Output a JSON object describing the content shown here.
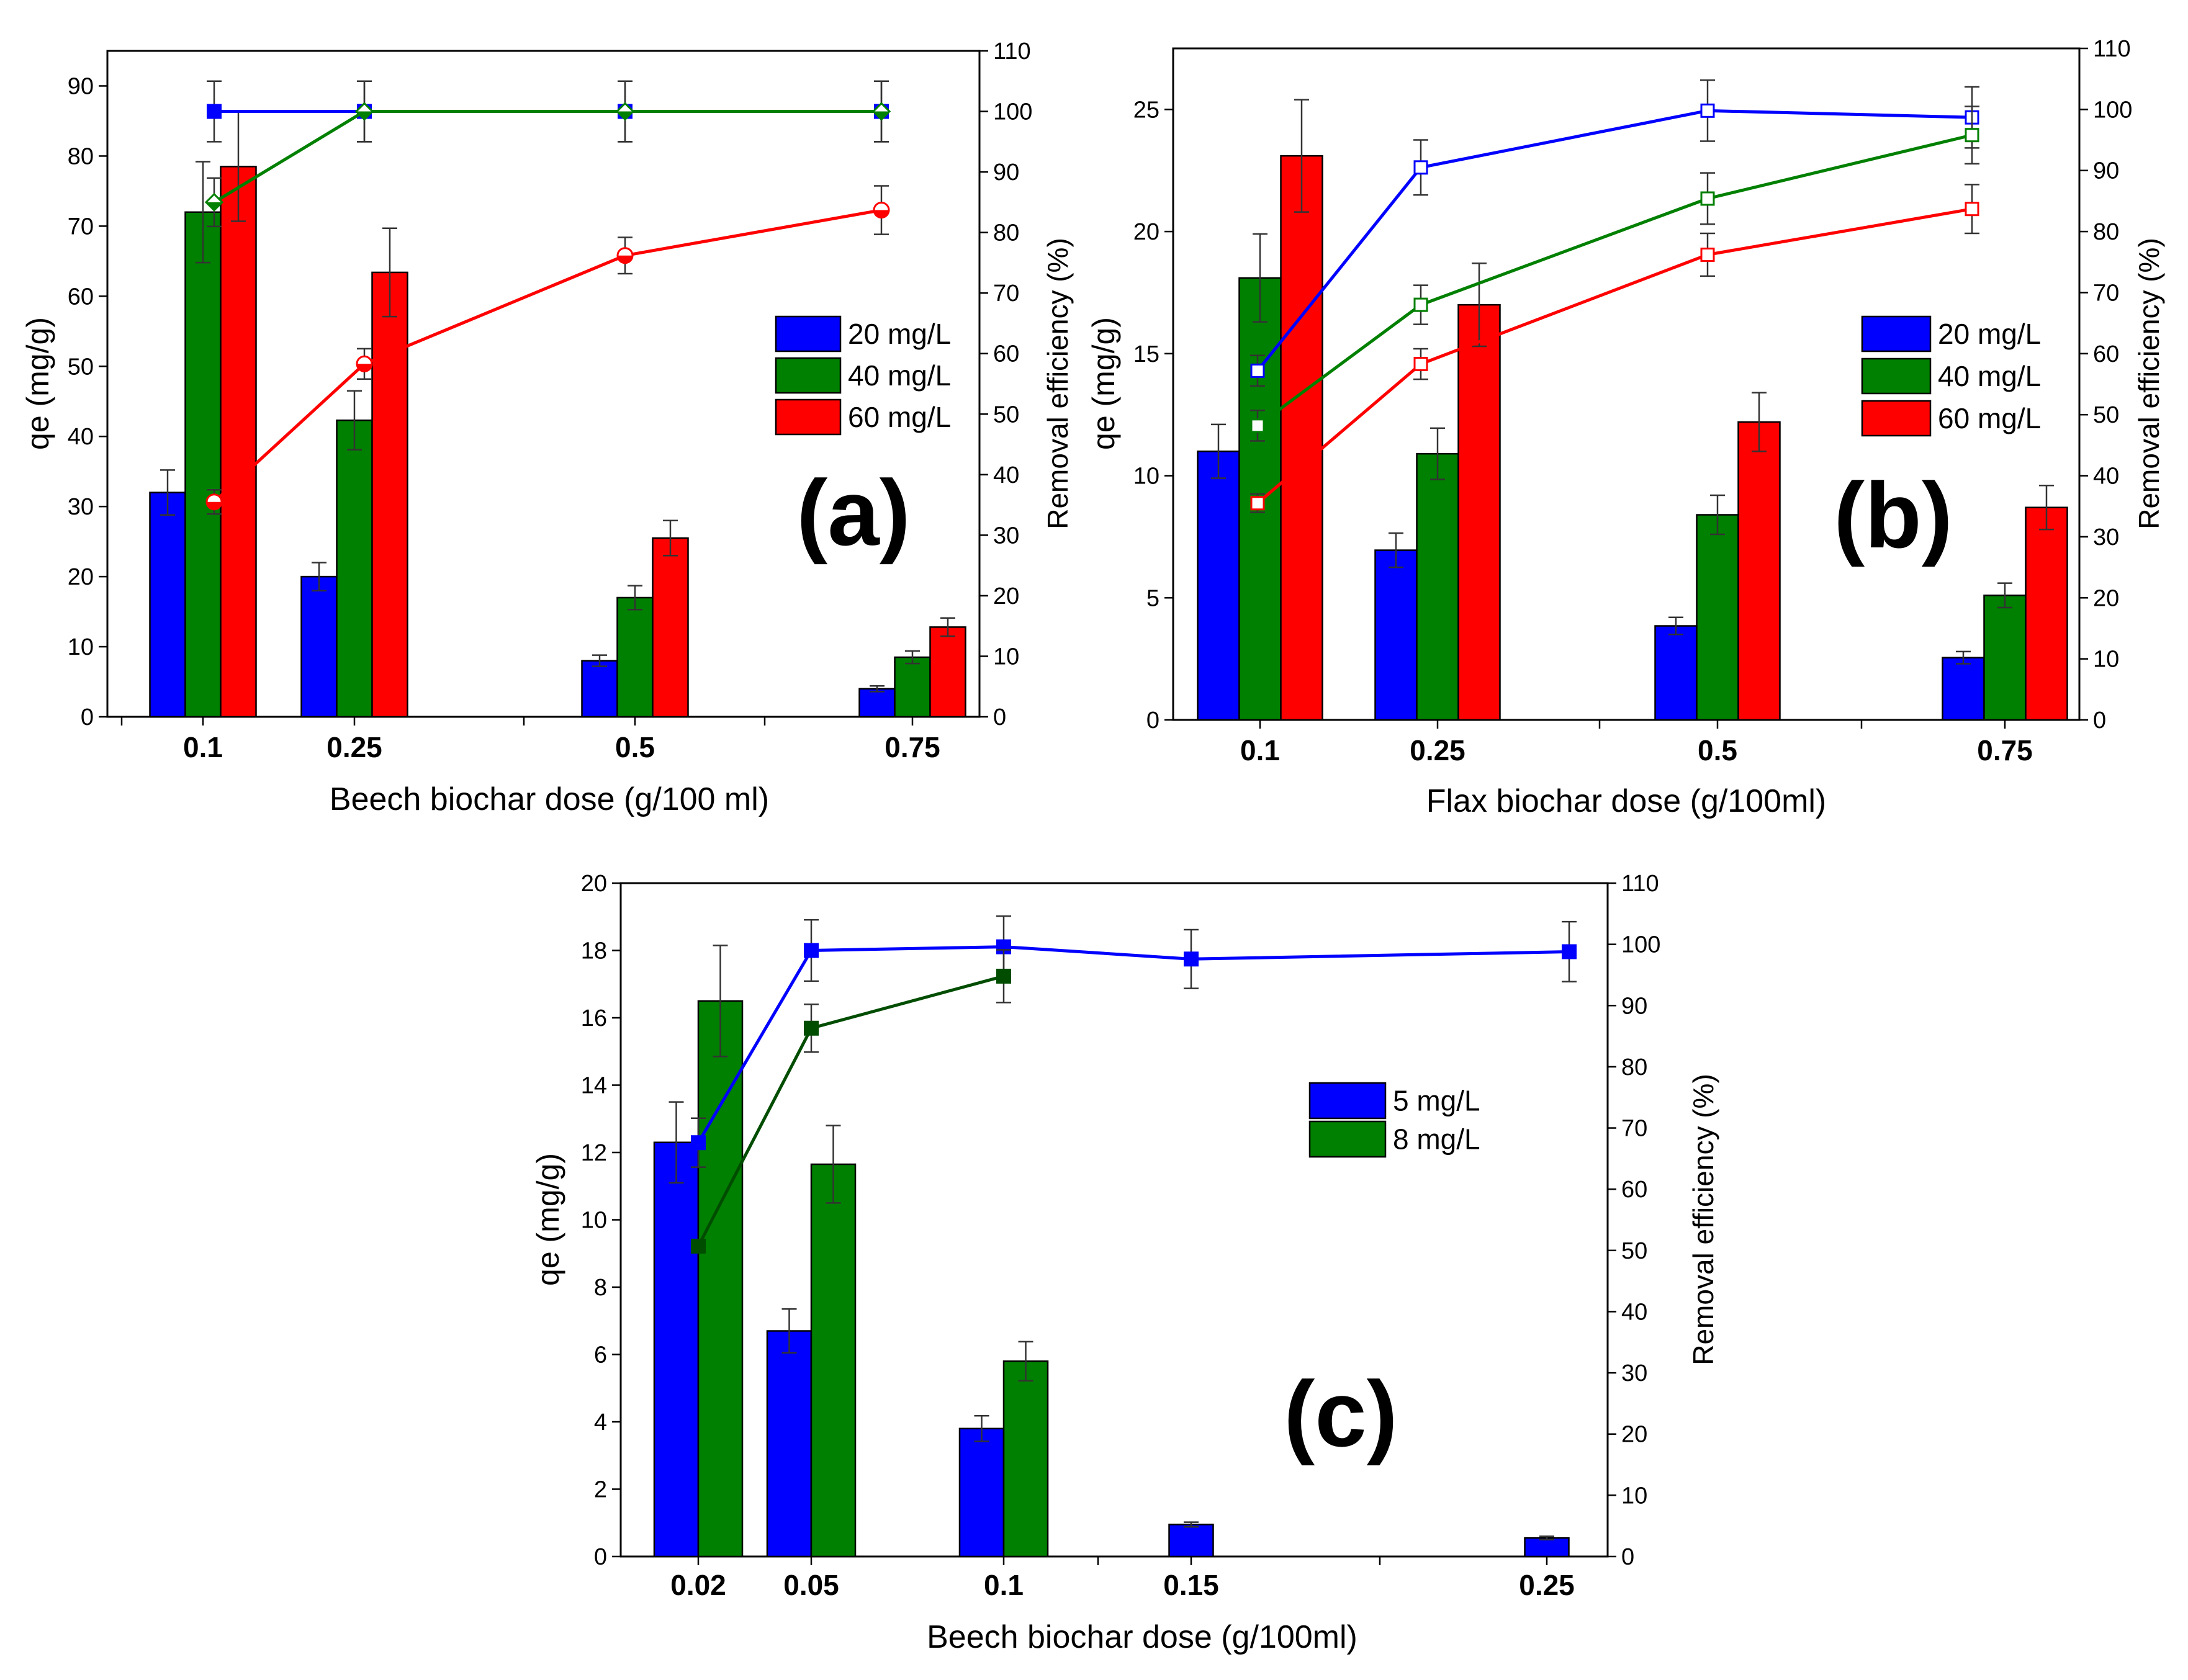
{
  "chart_data": [
    {
      "id": "a",
      "type": "bar",
      "panel_label": "(a)",
      "xlabel": "Beech biochar dose (g/100 ml)",
      "ylabel": "qe (mg/g)",
      "y2label": "Removal efficiency (%)",
      "categories": [
        "0.1",
        "0.25",
        "0.5",
        "0.75"
      ],
      "ylim": [
        0,
        95
      ],
      "yticks": [
        "0",
        "10",
        "20",
        "30",
        "40",
        "50",
        "60",
        "70",
        "80",
        "90"
      ],
      "y2lim": [
        0,
        110
      ],
      "y2ticks": [
        "0",
        "10",
        "20",
        "30",
        "40",
        "50",
        "60",
        "70",
        "80",
        "90",
        "100",
        "110"
      ],
      "legend_position": "center-right",
      "series": [
        {
          "name": "20 mg/L",
          "color": "#0000ff",
          "values": [
            32,
            20,
            8,
            4
          ],
          "errors": [
            3.2,
            2,
            0.8,
            0.4
          ],
          "removal": [
            100,
            100,
            100,
            100
          ],
          "removal_errors": [
            5,
            5,
            5,
            5
          ],
          "marker": "square-filled"
        },
        {
          "name": "40 mg/L",
          "color": "#008000",
          "values": [
            72,
            42.3,
            17,
            8.5
          ],
          "errors": [
            7.2,
            4.2,
            1.7,
            0.9
          ],
          "removal": [
            85,
            100,
            100,
            100
          ],
          "removal_errors": [
            4,
            5,
            5,
            5
          ],
          "marker": "diamond-half"
        },
        {
          "name": "60 mg/L",
          "color": "#ff0000",
          "values": [
            78.5,
            63.4,
            25.5,
            12.8
          ],
          "errors": [
            7.8,
            6.3,
            2.5,
            1.3
          ],
          "removal": [
            35.5,
            58.3,
            76.2,
            83.7
          ],
          "removal_errors": [
            2,
            2.5,
            3,
            4
          ],
          "marker": "circle-half"
        }
      ]
    },
    {
      "id": "b",
      "type": "bar",
      "panel_label": "(b)",
      "xlabel": "Flax biochar dose (g/100ml)",
      "ylabel": "qe (mg/g)",
      "y2label": "Removal efficiency (%)",
      "categories": [
        "0.1",
        "0.25",
        "0.5",
        "0.75"
      ],
      "ylim": [
        0,
        27.5
      ],
      "yticks": [
        "0",
        "5",
        "10",
        "15",
        "20",
        "25"
      ],
      "y2lim": [
        0,
        110
      ],
      "y2ticks": [
        "0",
        "10",
        "20",
        "30",
        "40",
        "50",
        "60",
        "70",
        "80",
        "90",
        "100",
        "110"
      ],
      "legend_position": "center-right",
      "series": [
        {
          "name": "20 mg/L",
          "color": "#0000ff",
          "values": [
            11,
            6.95,
            3.85,
            2.55
          ],
          "errors": [
            1.1,
            0.7,
            0.35,
            0.25
          ],
          "removal": [
            57.2,
            90.5,
            99.8,
            98.7
          ],
          "removal_errors": [
            2.5,
            4.5,
            5,
            5
          ],
          "marker": "square-open"
        },
        {
          "name": "40 mg/L",
          "color": "#008000",
          "values": [
            18.1,
            10.9,
            8.4,
            5.1
          ],
          "errors": [
            1.8,
            1.05,
            0.8,
            0.5
          ],
          "removal": [
            48.2,
            68,
            85.4,
            95.8
          ],
          "removal_errors": [
            2.5,
            3.2,
            4.2,
            4.7
          ],
          "marker": "square-open"
        },
        {
          "name": "60 mg/L",
          "color": "#ff0000",
          "values": [
            23.1,
            17,
            12.2,
            8.7
          ],
          "errors": [
            2.3,
            1.7,
            1.2,
            0.9
          ],
          "removal": [
            35.5,
            58.3,
            76.2,
            83.7
          ],
          "removal_errors": [
            1.5,
            2.5,
            3.5,
            4
          ],
          "marker": "square-open"
        }
      ]
    },
    {
      "id": "c",
      "type": "bar",
      "panel_label": "(c)",
      "xlabel": "Beech biochar dose (g/100ml)",
      "ylabel": "qe (mg/g)",
      "y2label": "Removal efficiency (%)",
      "categories": [
        "0.02",
        "0.05",
        "0.1",
        "0.15",
        "0.25"
      ],
      "ylim": [
        0,
        20
      ],
      "yticks": [
        "0",
        "2",
        "4",
        "6",
        "8",
        "10",
        "12",
        "14",
        "16",
        "18",
        "20"
      ],
      "y2lim": [
        0,
        110
      ],
      "y2ticks": [
        "0",
        "10",
        "20",
        "30",
        "40",
        "50",
        "60",
        "70",
        "80",
        "90",
        "100",
        "110"
      ],
      "legend_position": "center-right",
      "series": [
        {
          "name": "5 mg/L",
          "color": "#0000ff",
          "values": [
            12.3,
            6.7,
            3.8,
            0.95,
            0.55
          ],
          "errors": [
            1.2,
            0.65,
            0.38,
            0.07,
            0.05
          ],
          "removal": [
            67.6,
            99,
            99.6,
            97.6,
            98.8
          ],
          "removal_errors": [
            4,
            5,
            5,
            4.8,
            4.9
          ],
          "marker": "square-filled"
        },
        {
          "name": "8 mg/L",
          "color": "#008000",
          "values": [
            16.5,
            11.65,
            5.8,
            null,
            null
          ],
          "errors": [
            1.65,
            1.15,
            0.58,
            null,
            null
          ],
          "removal": [
            50.7,
            86.3,
            94.8,
            null,
            null
          ],
          "removal_errors": [
            0.8,
            3.9,
            4.3,
            null,
            null
          ],
          "marker": "square-filled-dark"
        }
      ]
    }
  ]
}
